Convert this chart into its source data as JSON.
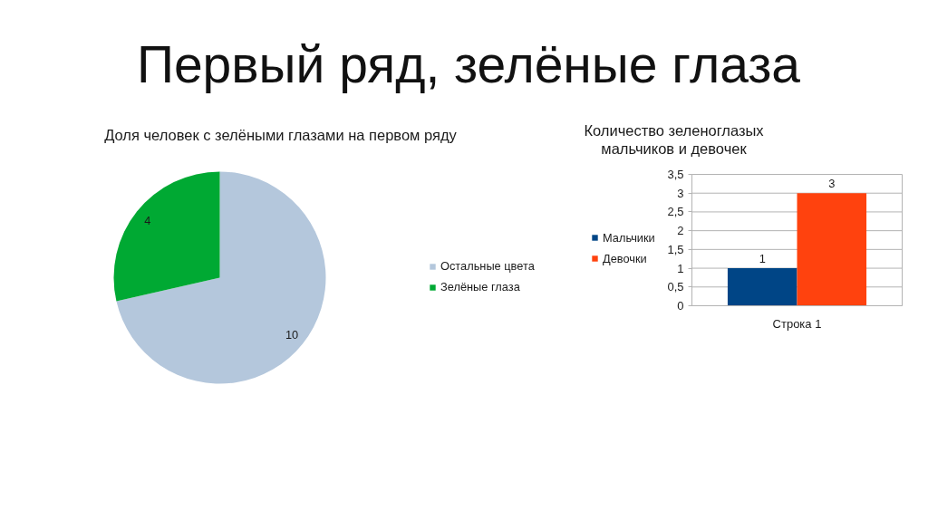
{
  "chart_data": [
    {
      "type": "pie",
      "title": "Первый ряд, зелёные глаза",
      "subtitle": "Доля человек с зелёными глазами на первом ряду",
      "categories": [
        "Остальные цвета",
        "Зелёные глаза"
      ],
      "values": [
        10,
        4
      ],
      "colors": [
        "#b4c7dc",
        "#00a933"
      ],
      "data_labels": true,
      "legend": "right"
    },
    {
      "type": "bar",
      "title": "Количество зеленоглазых\nмальчиков и девочек",
      "categories": [
        "Строка 1"
      ],
      "series": [
        {
          "name": "Мальчики",
          "color": "#004586",
          "values": [
            1
          ]
        },
        {
          "name": "Девочки",
          "color": "#ff420e",
          "values": [
            3
          ]
        }
      ],
      "ylim": [
        0,
        3.5
      ],
      "yticks": [
        0,
        {
          "value": 0.5,
          "label": "0,5"
        },
        1,
        {
          "value": 1.5,
          "label": "1,5"
        },
        2,
        {
          "value": 2.5,
          "label": "2,5"
        },
        3,
        {
          "value": 3.5,
          "label": "3,5"
        }
      ],
      "grid": "y",
      "legend": "left",
      "data_labels": true
    }
  ]
}
